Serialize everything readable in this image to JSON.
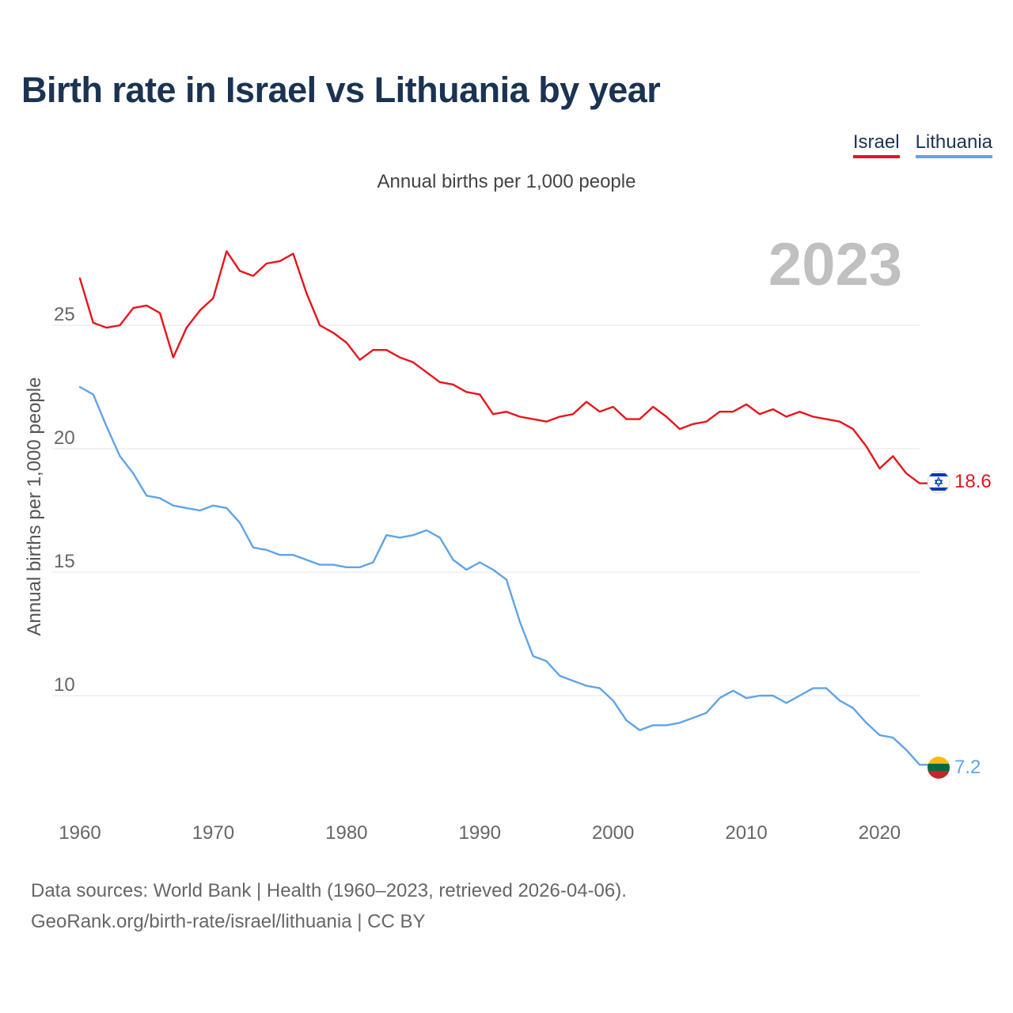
{
  "title": "Birth rate in Israel vs Lithuania by year",
  "subtitle": "Annual births per 1,000 people",
  "legend": {
    "israel": "Israel",
    "lithuania": "Lithuania"
  },
  "colors": {
    "israel": "#e8141b",
    "lithuania": "#5fa4e6",
    "title": "#1b3352",
    "year": "#c0c0c0",
    "grid": "#e6e6e6"
  },
  "footer": {
    "line1": "Data sources: World Bank | Health (1960–2023, retrieved 2026-04-06).",
    "line2": "GeoRank.org/birth-rate/israel/lithuania | CC BY"
  },
  "chart_data": {
    "type": "line",
    "title": "Birth rate in Israel vs Lithuania by year",
    "ylabel": "Annual births per 1,000 people",
    "xlabel": "",
    "year_label": "2023",
    "xlim": [
      1960,
      2023
    ],
    "ylim": [
      5.8,
      29.2
    ],
    "xticks": [
      1960,
      1970,
      1980,
      1990,
      2000,
      2010,
      2020
    ],
    "yticks": [
      10,
      15,
      20,
      25
    ],
    "grid": true,
    "legend_position": "top-right",
    "x": [
      1960,
      1961,
      1962,
      1963,
      1964,
      1965,
      1966,
      1967,
      1968,
      1969,
      1970,
      1971,
      1972,
      1973,
      1974,
      1975,
      1976,
      1977,
      1978,
      1979,
      1980,
      1981,
      1982,
      1983,
      1984,
      1985,
      1986,
      1987,
      1988,
      1989,
      1990,
      1991,
      1992,
      1993,
      1994,
      1995,
      1996,
      1997,
      1998,
      1999,
      2000,
      2001,
      2002,
      2003,
      2004,
      2005,
      2006,
      2007,
      2008,
      2009,
      2010,
      2011,
      2012,
      2013,
      2014,
      2015,
      2016,
      2017,
      2018,
      2019,
      2020,
      2021,
      2022,
      2023
    ],
    "series": [
      {
        "name": "Israel",
        "end_label": "18.6",
        "values": [
          26.9,
          25.1,
          24.9,
          25.0,
          25.7,
          25.8,
          25.5,
          23.7,
          24.9,
          25.6,
          26.1,
          28.0,
          27.2,
          27.0,
          27.5,
          27.6,
          27.9,
          26.3,
          25.0,
          24.7,
          24.3,
          23.6,
          24.0,
          24.0,
          23.7,
          23.5,
          23.1,
          22.7,
          22.6,
          22.3,
          22.2,
          21.4,
          21.5,
          21.3,
          21.2,
          21.1,
          21.3,
          21.4,
          21.9,
          21.5,
          21.7,
          21.2,
          21.2,
          21.7,
          21.3,
          20.8,
          21.0,
          21.1,
          21.5,
          21.5,
          21.8,
          21.4,
          21.6,
          21.3,
          21.5,
          21.3,
          21.2,
          21.1,
          20.8,
          20.1,
          19.2,
          19.7,
          19.0,
          18.6
        ]
      },
      {
        "name": "Lithuania",
        "end_label": "7.2",
        "values": [
          22.5,
          22.2,
          20.9,
          19.7,
          19.0,
          18.1,
          18.0,
          17.7,
          17.6,
          17.5,
          17.7,
          17.6,
          17.0,
          16.0,
          15.9,
          15.7,
          15.7,
          15.5,
          15.3,
          15.3,
          15.2,
          15.2,
          15.4,
          16.5,
          16.4,
          16.5,
          16.7,
          16.4,
          15.5,
          15.1,
          15.4,
          15.1,
          14.7,
          13.0,
          11.6,
          11.4,
          10.8,
          10.6,
          10.4,
          10.3,
          9.8,
          9.0,
          8.6,
          8.8,
          8.8,
          8.9,
          9.1,
          9.3,
          9.9,
          10.2,
          9.9,
          10.0,
          10.0,
          9.7,
          10.0,
          10.3,
          10.3,
          9.8,
          9.5,
          8.9,
          8.4,
          8.3,
          7.8,
          7.2
        ]
      }
    ]
  }
}
